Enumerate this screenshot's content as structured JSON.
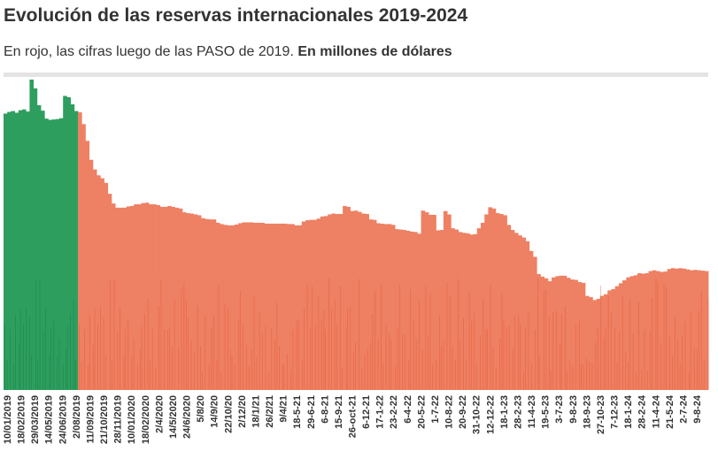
{
  "title": "Evolución de las reservas internacionales 2019-2024",
  "subtitle": {
    "text": "En rojo, las cifras luego de las PASO de 2019.",
    "bold": "En millones de dólares"
  },
  "colors": {
    "pre_paso": "#2e9e5f",
    "pre_paso_dark": "#137a3f",
    "post_paso": "#ee8063",
    "post_paso_dark": "#e4532e",
    "rule": "#e4e4e4"
  },
  "chart_data": {
    "type": "bar",
    "ylim": [
      0,
      80000
    ],
    "x_tick_labels": [
      "10/01/2019",
      "18/02/2019",
      "29/03/2019",
      "14/05/2019",
      "24/06/2019",
      "2/08/2019",
      "11/09/2019",
      "21/10/2019",
      "28/11/2019",
      "10/01/2020",
      "18/02/2020",
      "2/4/2020",
      "14/5/2020",
      "24/6/2020",
      "5/8/20",
      "14/9/20",
      "22/10/20",
      "2/12/20",
      "18/1/21",
      "26/2/21",
      "9/4/21",
      "18-5-21",
      "29-6-21",
      "6-8-21",
      "15-9-21",
      "26-oct-21",
      "6-12-21",
      "17-1-22",
      "23-2-22",
      "6-4-22",
      "20-5-22",
      "1-7-22",
      "10-8-22",
      "20-9-22",
      "31-10-22",
      "12-12-22",
      "18-1-23",
      "28-2-23",
      "11-4-23",
      "19-5-23",
      "3-7-23",
      "9-8-23",
      "18-9-23",
      "27-10-23",
      "7-12-23",
      "18-1-24",
      "28-2-24",
      "11-4-24",
      "21-5-24",
      "2-7-24",
      "9-8-24"
    ],
    "series": [
      {
        "key": "pre",
        "values": [
          65800,
          66200,
          66400,
          66000,
          66600,
          66800,
          66300,
          76900,
          71800,
          67800,
          66500,
          64600,
          64300,
          64400,
          64500,
          64700,
          70000,
          69700,
          68000,
          66400
        ]
      },
      {
        "key": "post",
        "values": [
          66100,
          63300,
          59300,
          54800,
          52500,
          51100,
          50400,
          49300,
          46700,
          44400,
          43400,
          43400,
          43400,
          43700,
          43800,
          44200,
          44200,
          44500,
          44600,
          44200,
          44200,
          44000,
          43600,
          43600,
          43800,
          43600,
          43400,
          43200,
          42300,
          42100,
          42000,
          41800,
          41600,
          40900,
          40700,
          40600,
          40600,
          39800,
          39500,
          39300,
          39200,
          39200,
          39400,
          39700,
          39900,
          39900,
          39900,
          39800,
          39800,
          39800,
          39600,
          39600,
          39600,
          39600,
          39600,
          39600,
          39500,
          39500,
          39200,
          39200,
          40100,
          40400,
          40500,
          40500,
          40800,
          41300,
          41400,
          41800,
          42000,
          41900,
          41900,
          43800,
          43600,
          42600,
          42700,
          42400,
          42000,
          41900,
          40600,
          40500,
          39700,
          39600,
          39500,
          39500,
          39300,
          38300,
          38200,
          38100,
          37900,
          37700,
          37600,
          37200,
          42700,
          42300,
          41700,
          41700,
          38000,
          38100,
          42600,
          41800,
          38500,
          38200,
          37600,
          37400,
          37300,
          37000,
          37100,
          38500,
          39800,
          41800,
          43500,
          43200,
          42100,
          41900,
          41600,
          39300,
          38100,
          37400,
          36800,
          36300,
          35400,
          33100,
          31700,
          27600,
          27000,
          26600,
          25900,
          26800,
          27100,
          27200,
          27200,
          26700,
          26300,
          26200,
          25700,
          25500,
          22400,
          22100,
          21400,
          21700,
          22400,
          22800,
          23700,
          24000,
          24700,
          25400,
          26100,
          26800,
          27100,
          27300,
          27800,
          27700,
          27800,
          28300,
          28500,
          28300,
          28100,
          28200,
          28800,
          29000,
          28900,
          29000,
          28900,
          28700,
          28500,
          28600,
          28500,
          28400,
          28300
        ]
      }
    ]
  }
}
